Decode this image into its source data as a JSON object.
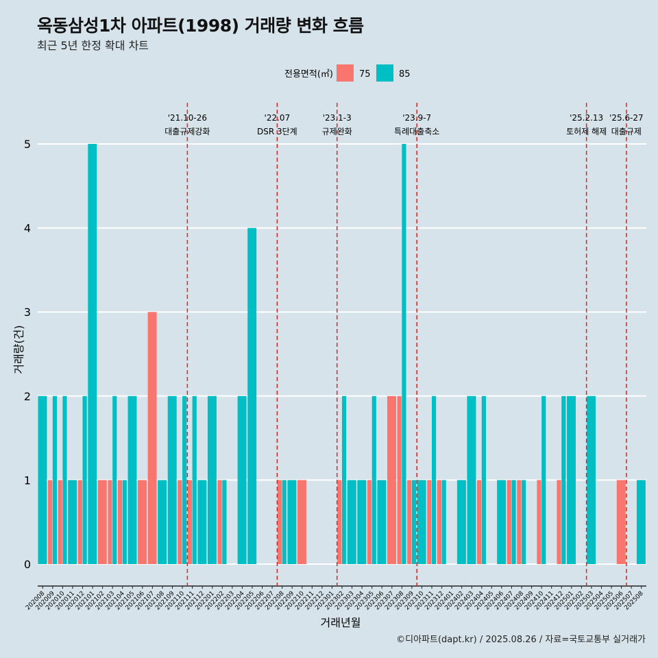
{
  "title": "옥동삼성1차 아파트(1998) 거래량 변화 흐름",
  "subtitle": "최근 5년 한정 확대 차트",
  "caption": "©디아파트(dapt.kr) / 2025.08.26 / 자료=국토교통부 실거래가",
  "colors": {
    "background": "#d6e3ea",
    "s75": "#f8766d",
    "s85": "#00bfc4",
    "event_line": "#e8221c",
    "grid": "#ffffff"
  },
  "chart_data": {
    "type": "bar",
    "xlabel": "거래년월",
    "ylabel": "거래량(건)",
    "ylim": [
      0,
      5
    ],
    "yticks": [
      0,
      1,
      2,
      3,
      4,
      5
    ],
    "grid": true,
    "legend": {
      "title": "전용면적(㎡)",
      "position": "top",
      "entries": [
        "75",
        "85"
      ]
    },
    "categories": [
      "202008",
      "202009",
      "202010",
      "202011",
      "202012",
      "202101",
      "202102",
      "202103",
      "202104",
      "202105",
      "202106",
      "202107",
      "202108",
      "202109",
      "202110",
      "202111",
      "202112",
      "202201",
      "202202",
      "202203",
      "202204",
      "202205",
      "202206",
      "202207",
      "202208",
      "202209",
      "202210",
      "202211",
      "202212",
      "202301",
      "202302",
      "202303",
      "202304",
      "202305",
      "202306",
      "202307",
      "202308",
      "202309",
      "202310",
      "202311",
      "202312",
      "202401",
      "202402",
      "202403",
      "202404",
      "202405",
      "202406",
      "202407",
      "202408",
      "202409",
      "202410",
      "202411",
      "202412",
      "202501",
      "202502",
      "202503",
      "202504",
      "202505",
      "202506",
      "202507",
      "202508"
    ],
    "series": [
      {
        "name": "75",
        "values": [
          0,
          1,
          1,
          0,
          1,
          0,
          1,
          1,
          1,
          0,
          1,
          3,
          0,
          0,
          1,
          1,
          0,
          0,
          1,
          0,
          0,
          0,
          0,
          0,
          1,
          0,
          1,
          0,
          0,
          0,
          1,
          0,
          0,
          1,
          0,
          2,
          2,
          1,
          0,
          1,
          1,
          0,
          0,
          0,
          1,
          0,
          0,
          1,
          1,
          0,
          1,
          0,
          1,
          0,
          0,
          0,
          0,
          0,
          1,
          0,
          0
        ]
      },
      {
        "name": "85",
        "values": [
          2,
          2,
          2,
          1,
          2,
          5,
          0,
          2,
          1,
          2,
          0,
          0,
          1,
          2,
          2,
          2,
          1,
          2,
          1,
          0,
          2,
          4,
          0,
          0,
          1,
          1,
          0,
          0,
          0,
          0,
          2,
          1,
          1,
          2,
          1,
          0,
          5,
          1,
          1,
          2,
          1,
          0,
          1,
          2,
          2,
          0,
          1,
          1,
          1,
          0,
          2,
          0,
          2,
          2,
          0,
          2,
          0,
          0,
          0,
          0,
          1
        ]
      }
    ],
    "annotations": [
      {
        "date_line": "'21.10-26",
        "label": "대출규제강화",
        "after": "202110"
      },
      {
        "date_line": "'22.07",
        "label": "DSR 3단계",
        "after": "202207"
      },
      {
        "date_line": "'23.1-3",
        "label": "규제완화",
        "after": "202301"
      },
      {
        "date_line": "'23.9-7",
        "label": "특례대출축소",
        "after": "202309"
      },
      {
        "date_line": "'25.2.13",
        "label": "토허제 해제",
        "after": "202502"
      },
      {
        "date_line": "'25.6-27",
        "label": "대출규제",
        "after": "202506"
      }
    ]
  }
}
